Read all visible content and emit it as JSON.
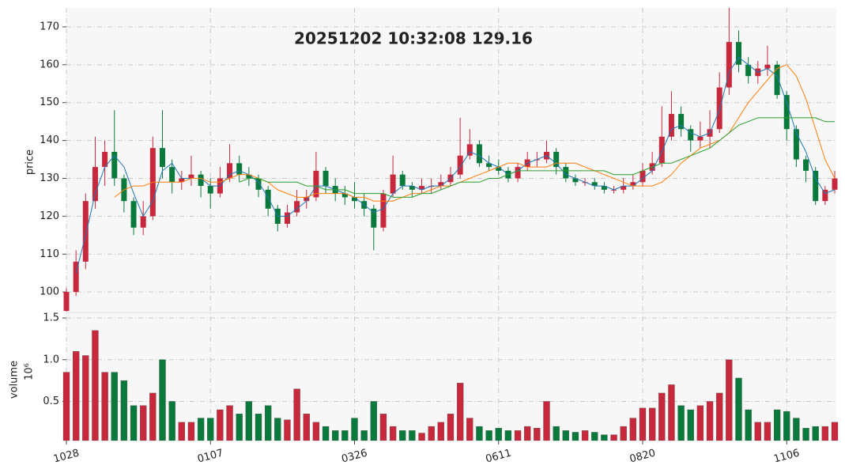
{
  "chart_data": {
    "type": "candlestick",
    "title": "20251202 10:32:08   129.16",
    "ylabel": "price",
    "up_color": "#c8283c",
    "down_color": "#0a7a3c",
    "grid": true,
    "categories": [
      "1028",
      null,
      null,
      null,
      null,
      null,
      null,
      null,
      null,
      null,
      null,
      null,
      null,
      null,
      null,
      "0107",
      null,
      null,
      null,
      null,
      null,
      null,
      null,
      null,
      null,
      null,
      null,
      null,
      null,
      null,
      "0326",
      null,
      null,
      null,
      null,
      null,
      null,
      null,
      null,
      null,
      null,
      null,
      null,
      null,
      null,
      "0611",
      null,
      null,
      null,
      null,
      null,
      null,
      null,
      null,
      null,
      null,
      null,
      null,
      null,
      null,
      "0820",
      null,
      null,
      null,
      null,
      null,
      null,
      null,
      null,
      null,
      null,
      null,
      null,
      null,
      null,
      "1106",
      null,
      null,
      null,
      null,
      null
    ],
    "open": [
      95,
      100,
      108,
      124,
      133,
      137,
      130,
      124,
      117,
      120,
      138,
      133,
      129,
      130,
      131,
      128,
      126,
      130,
      134,
      131,
      130,
      127,
      122,
      118,
      121,
      124,
      125,
      132,
      128,
      126,
      125,
      124,
      122,
      117,
      126,
      131,
      128,
      127,
      128,
      128,
      129,
      131,
      136,
      139,
      134,
      133,
      132,
      130,
      133,
      135,
      135,
      137,
      133,
      130,
      129,
      129,
      128,
      127,
      127,
      128,
      129,
      132,
      134,
      141,
      147,
      143,
      140,
      141,
      143,
      154,
      166,
      160,
      157,
      159,
      160,
      152,
      143,
      135,
      132,
      124,
      127
    ],
    "high": [
      101,
      111,
      126,
      141,
      140,
      148,
      131,
      125,
      124,
      141,
      148,
      135,
      132,
      136,
      132,
      130,
      133,
      139,
      136,
      133,
      131,
      128,
      123,
      123,
      127,
      127,
      137,
      133,
      130,
      128,
      129,
      126,
      123,
      127,
      136,
      132,
      129,
      130,
      130,
      131,
      133,
      146,
      143,
      140,
      136,
      135,
      133,
      134,
      137,
      137,
      140,
      138,
      134,
      131,
      130,
      130,
      129,
      128,
      130,
      131,
      134,
      137,
      149,
      153,
      149,
      144,
      145,
      148,
      158,
      175,
      169,
      162,
      161,
      165,
      161,
      153,
      144,
      136,
      133,
      128,
      132
    ],
    "low": [
      94.8,
      99,
      106,
      122,
      128,
      128,
      121,
      115,
      115,
      119,
      130,
      126,
      127,
      128,
      125,
      122,
      125,
      129,
      129,
      128,
      125,
      120,
      116,
      117,
      120,
      122,
      124,
      126,
      124,
      123,
      122,
      120,
      111,
      116,
      125,
      127,
      125,
      126,
      126,
      127,
      128,
      130,
      135,
      133,
      132,
      131,
      129,
      129,
      132,
      133,
      134,
      131,
      129,
      128,
      128,
      127,
      126,
      126,
      126,
      127,
      128,
      131,
      133,
      140,
      141,
      137,
      138,
      138,
      142,
      152,
      158,
      155,
      155,
      157,
      151,
      140,
      133,
      129,
      123,
      123,
      126
    ],
    "close": [
      100,
      108,
      124,
      133,
      137,
      130,
      124,
      117,
      120,
      138,
      133,
      129,
      130,
      131,
      128,
      126,
      130,
      134,
      131,
      130,
      127,
      122,
      118,
      121,
      124,
      125,
      132,
      128,
      126,
      125,
      124,
      122,
      117,
      126,
      131,
      128,
      127,
      128,
      128,
      129,
      131,
      136,
      139,
      134,
      133,
      132,
      130,
      133,
      135,
      135,
      137,
      133,
      130,
      129,
      129,
      128,
      127,
      127,
      128,
      129,
      132,
      134,
      141,
      147,
      143,
      140,
      141,
      143,
      154,
      166,
      160,
      157,
      159,
      160,
      152,
      143,
      135,
      132,
      124,
      127,
      130
    ],
    "series": [
      {
        "color": "#1f77b4",
        "values": [
          null,
          105,
          115,
          126,
          133,
          136,
          133,
          126,
          120,
          124,
          132,
          134,
          130,
          130,
          130,
          128,
          128,
          131,
          132,
          131,
          129,
          125,
          120,
          120,
          122,
          124,
          128,
          128,
          127,
          126,
          125,
          123,
          121,
          122,
          126,
          128,
          128,
          127,
          128,
          128,
          130,
          133,
          137,
          136,
          134,
          133,
          131,
          132,
          134,
          135,
          136,
          134,
          131,
          130,
          129,
          128,
          128,
          127,
          128,
          128,
          130,
          132,
          137,
          143,
          144,
          142,
          141,
          142,
          148,
          158,
          162,
          160,
          158,
          159,
          157,
          150,
          142,
          137,
          130,
          126,
          127
        ]
      },
      {
        "color": "#ff7f0e",
        "values": [
          null,
          null,
          null,
          null,
          null,
          125,
          127,
          128,
          128,
          129,
          129,
          129,
          129,
          130,
          130,
          129,
          129,
          130,
          131,
          131,
          130,
          129,
          127,
          126,
          125,
          125,
          126,
          126,
          126,
          126,
          125,
          125,
          124,
          124,
          124,
          125,
          126,
          126,
          127,
          128,
          128,
          129,
          130,
          131,
          132,
          133,
          134,
          134,
          133,
          133,
          133,
          134,
          134,
          134,
          133,
          132,
          131,
          130,
          129,
          128,
          128,
          128,
          129,
          131,
          134,
          136,
          138,
          139,
          140,
          142,
          146,
          150,
          153,
          156,
          159,
          160,
          157,
          151,
          143,
          135,
          130
        ]
      },
      {
        "color": "#2ca02c",
        "values": [
          null,
          null,
          null,
          null,
          null,
          null,
          null,
          null,
          null,
          null,
          null,
          null,
          null,
          null,
          null,
          null,
          null,
          null,
          129,
          130,
          130,
          129,
          129,
          129,
          129,
          128,
          128,
          127,
          127,
          127,
          126,
          126,
          126,
          126,
          125,
          125,
          125,
          126,
          126,
          127,
          128,
          129,
          129,
          129,
          130,
          130,
          131,
          132,
          132,
          132,
          132,
          132,
          132,
          132,
          132,
          132,
          132,
          131,
          131,
          131,
          132,
          133,
          134,
          134,
          135,
          136,
          137,
          138,
          140,
          142,
          144,
          145,
          146,
          146,
          146,
          146,
          146,
          146,
          146,
          145,
          145
        ]
      }
    ],
    "ylim": [
      94.6,
      175
    ],
    "yticks": [
      100,
      110,
      120,
      130,
      140,
      150,
      160,
      170
    ],
    "volume": {
      "ylabel": "volume",
      "offset_label": "10⁶",
      "ylim": [
        0.03,
        1.567
      ],
      "yticks": [
        0.5,
        {
          "value": 1,
          "label": "1.0"
        },
        1.5
      ],
      "values": [
        0.85,
        1.1,
        1.05,
        1.35,
        0.85,
        0.85,
        0.75,
        0.45,
        0.45,
        0.6,
        1.0,
        0.5,
        0.25,
        0.25,
        0.3,
        0.3,
        0.4,
        0.45,
        0.35,
        0.5,
        0.35,
        0.45,
        0.3,
        0.28,
        0.65,
        0.35,
        0.25,
        0.2,
        0.15,
        0.15,
        0.3,
        0.15,
        0.5,
        0.35,
        0.2,
        0.15,
        0.15,
        0.12,
        0.2,
        0.25,
        0.35,
        0.72,
        0.3,
        0.2,
        0.15,
        0.18,
        0.15,
        0.15,
        0.2,
        0.18,
        0.5,
        0.2,
        0.15,
        0.13,
        0.15,
        0.13,
        0.1,
        0.1,
        0.2,
        0.3,
        0.42,
        0.42,
        0.6,
        0.7,
        0.45,
        0.4,
        0.45,
        0.5,
        0.6,
        1.0,
        0.78,
        0.4,
        0.25,
        0.25,
        0.4,
        0.38,
        0.3,
        0.18,
        0.2,
        0.2,
        0.25
      ]
    }
  }
}
